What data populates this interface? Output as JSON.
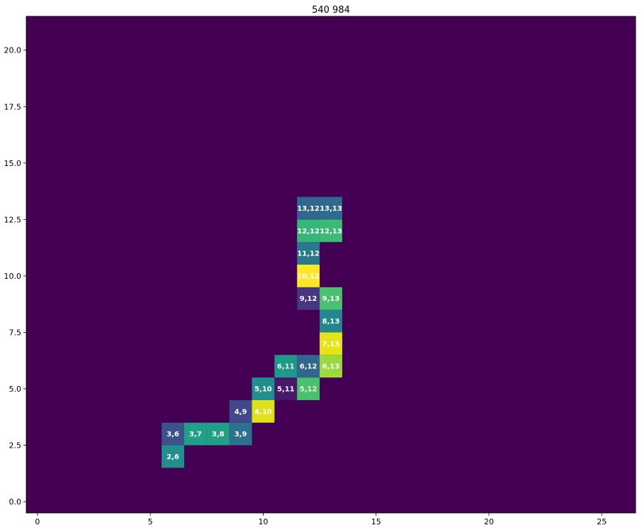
{
  "chart_data": {
    "type": "heatmap",
    "title": "540 984",
    "xlabel": "",
    "ylabel": "",
    "xlim": [
      -0.5,
      26.5
    ],
    "ylim": [
      -0.5,
      21.5
    ],
    "x_ticks": [
      0,
      5,
      10,
      15,
      20,
      25
    ],
    "x_tick_labels": [
      "0",
      "5",
      "10",
      "15",
      "20",
      "25"
    ],
    "y_ticks": [
      0,
      2.5,
      5,
      7.5,
      10,
      12.5,
      15,
      17.5,
      20
    ],
    "y_tick_labels": [
      "0.0",
      "2.5",
      "5.0",
      "7.5",
      "10.0",
      "12.5",
      "15.0",
      "17.5",
      "20.0"
    ],
    "colormap": "viridis",
    "background_color": "#440154",
    "grid": false,
    "cells": [
      {
        "x": 6,
        "y": 2,
        "label": "2,6",
        "color": "#21908c",
        "label_color": "#ffffff"
      },
      {
        "x": 6,
        "y": 3,
        "label": "3,6",
        "color": "#3b528b",
        "label_color": "#ffffff"
      },
      {
        "x": 7,
        "y": 3,
        "label": "3,7",
        "color": "#1fa187",
        "label_color": "#ffffff"
      },
      {
        "x": 8,
        "y": 3,
        "label": "3,8",
        "color": "#1fa187",
        "label_color": "#ffffff"
      },
      {
        "x": 9,
        "y": 3,
        "label": "3,9",
        "color": "#2c728e",
        "label_color": "#ffffff"
      },
      {
        "x": 9,
        "y": 4,
        "label": "4,9",
        "color": "#3e4a89",
        "label_color": "#ffffff"
      },
      {
        "x": 10,
        "y": 4,
        "label": "4,10",
        "color": "#dde318",
        "label_color": "#ffffff"
      },
      {
        "x": 10,
        "y": 5,
        "label": "5,10",
        "color": "#21908c",
        "label_color": "#ffffff"
      },
      {
        "x": 11,
        "y": 5,
        "label": "5,11",
        "color": "#48186a",
        "label_color": "#ffffff"
      },
      {
        "x": 12,
        "y": 5,
        "label": "5,12",
        "color": "#4ac16d",
        "label_color": "#e8f5e9"
      },
      {
        "x": 11,
        "y": 6,
        "label": "6,11",
        "color": "#21968b",
        "label_color": "#e8f5e9"
      },
      {
        "x": 12,
        "y": 6,
        "label": "6,12",
        "color": "#30678d",
        "label_color": "#ffffff"
      },
      {
        "x": 13,
        "y": 6,
        "label": "6,13",
        "color": "#9bd93c",
        "label_color": "#ffffff"
      },
      {
        "x": 13,
        "y": 7,
        "label": "7,13",
        "color": "#e5e419",
        "label_color": "#ffffff"
      },
      {
        "x": 13,
        "y": 8,
        "label": "8,13",
        "color": "#24868e",
        "label_color": "#ffffff"
      },
      {
        "x": 12,
        "y": 9,
        "label": "9,12",
        "color": "#453781",
        "label_color": "#ffffff"
      },
      {
        "x": 13,
        "y": 9,
        "label": "9,13",
        "color": "#4ac16d",
        "label_color": "#ffffff"
      },
      {
        "x": 12,
        "y": 10,
        "label": "10,12",
        "color": "#fde725",
        "label_color": "#ffffff"
      },
      {
        "x": 12,
        "y": 11,
        "label": "11,12",
        "color": "#2a788e",
        "label_color": "#ffffff"
      },
      {
        "x": 12,
        "y": 12,
        "label": "12,12",
        "color": "#35b779",
        "label_color": "#ffffff"
      },
      {
        "x": 13,
        "y": 12,
        "label": "12,13",
        "color": "#3cbb75",
        "label_color": "#ffffff"
      },
      {
        "x": 12,
        "y": 13,
        "label": "13,12",
        "color": "#31668e",
        "label_color": "#ffffff"
      },
      {
        "x": 13,
        "y": 13,
        "label": "13,13",
        "color": "#2f6b8e",
        "label_color": "#ffffff"
      }
    ]
  }
}
